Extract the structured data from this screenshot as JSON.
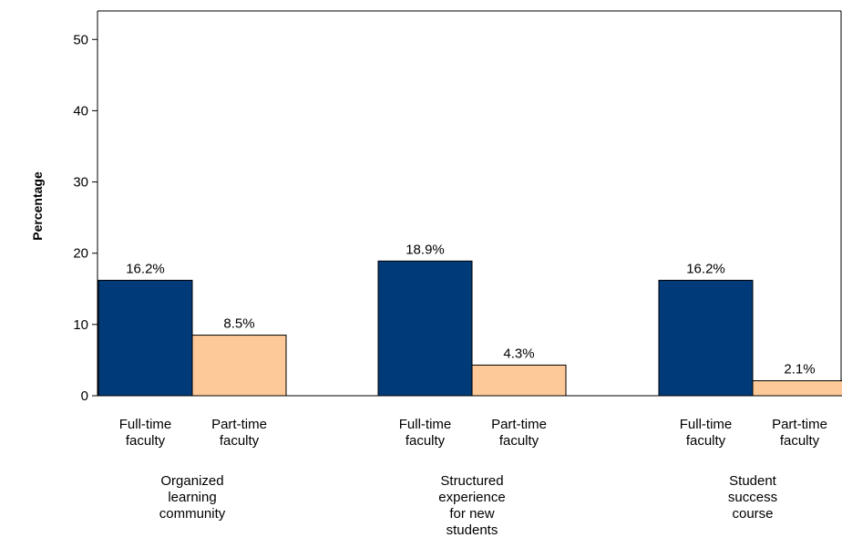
{
  "chart_data": {
    "type": "bar",
    "ylabel": "Percentage",
    "xlabel": "",
    "ylim": [
      0,
      54
    ],
    "yticks": [
      0,
      10,
      20,
      30,
      40,
      50
    ],
    "grid": false,
    "legend": "none",
    "categories": [
      [
        "Organized",
        "learning",
        "community"
      ],
      [
        "Structured",
        "experience",
        "for new",
        "students"
      ],
      [
        "Student",
        "success",
        "course"
      ]
    ],
    "series": [
      {
        "label_lines": [
          "Full-time",
          "faculty"
        ],
        "color": "#003a78",
        "values": [
          16.2,
          18.9,
          16.2
        ],
        "value_labels": [
          "16.2%",
          "18.9%",
          "16.2%"
        ]
      },
      {
        "label_lines": [
          "Part-time",
          "faculty"
        ],
        "color": "#fdc998",
        "values": [
          8.5,
          4.3,
          2.1
        ],
        "value_labels": [
          "8.5%",
          "4.3%",
          "2.1%"
        ]
      }
    ],
    "colors": {
      "axis": "#000000",
      "bar_outline": "#000000"
    }
  }
}
